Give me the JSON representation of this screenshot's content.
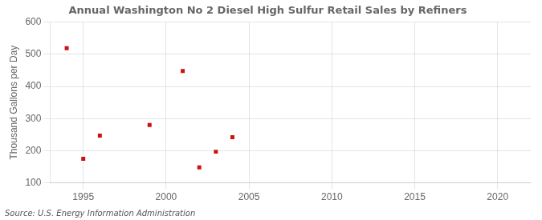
{
  "chart_data": {
    "type": "scatter",
    "title": "Annual Washington No 2 Diesel High Sulfur Retail Sales by Refiners",
    "y_label": "Thousand Gallons per Day",
    "annotation": "Source: U.S. Energy Information Administration",
    "x": [
      1994,
      1995,
      1996,
      1999,
      2001,
      2002,
      2003,
      2004
    ],
    "values": [
      519,
      175,
      247,
      280,
      448,
      148,
      197,
      242
    ],
    "color": "#cc1111",
    "marker": "square",
    "xlim": [
      1993,
      2022
    ],
    "ylim": [
      100,
      600
    ],
    "xticks": [
      1995,
      2000,
      2005,
      2010,
      2015,
      2020
    ],
    "yticks": [
      100,
      200,
      300,
      400,
      500,
      600
    ],
    "grid": true
  }
}
